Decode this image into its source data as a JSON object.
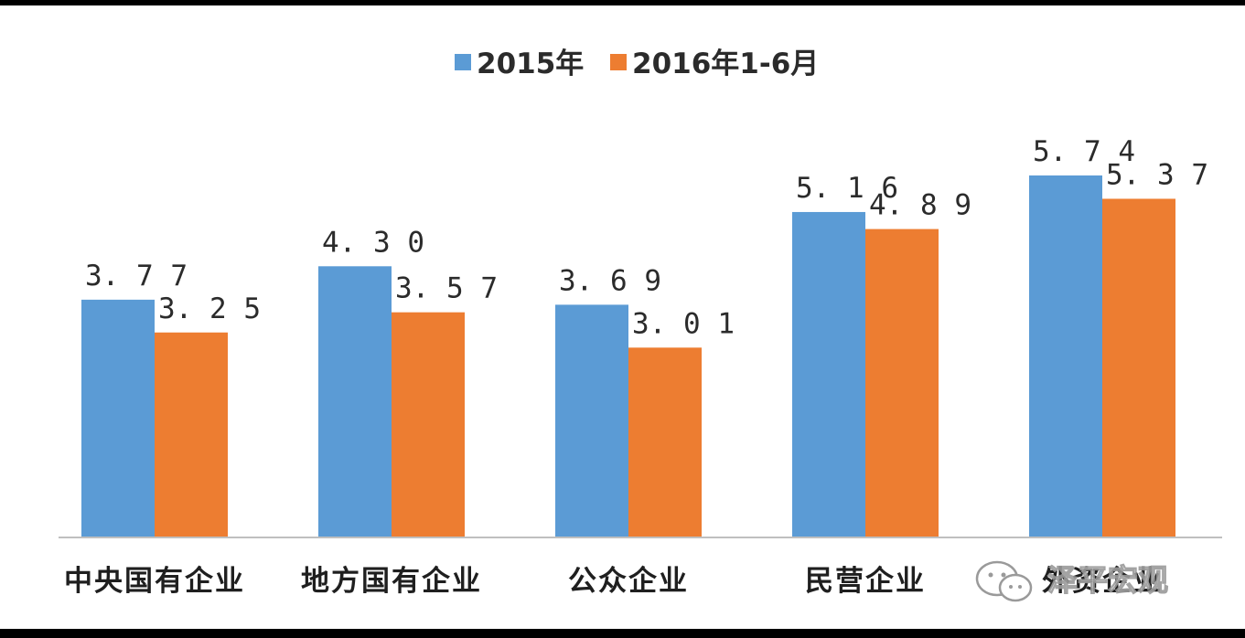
{
  "chart_data": {
    "type": "bar",
    "title": "",
    "xlabel": "",
    "ylabel": "",
    "ylim": [
      0,
      6.5
    ],
    "grid": false,
    "legend_position": "top-center",
    "categories": [
      "中央国有企业",
      "地方国有企业",
      "公众企业",
      "民营企业",
      "外资企业"
    ],
    "series": [
      {
        "name": "2015年",
        "color": "#5B9BD5",
        "values": [
          3.77,
          4.3,
          3.69,
          5.16,
          5.74
        ],
        "labels": [
          "3.77",
          "4.30",
          "3.69",
          "5.16",
          "5.74"
        ]
      },
      {
        "name": "2016年1-6月",
        "color": "#ED7D31",
        "values": [
          3.25,
          3.57,
          3.01,
          4.89,
          5.37
        ],
        "labels": [
          "3.25",
          "3.57",
          "3.01",
          "4.89",
          "5.37"
        ]
      }
    ]
  },
  "colors": {
    "frame": "#000000",
    "background": "#ffffff",
    "axis": "#bfbfbf"
  },
  "watermark": {
    "text": "泽平宏观",
    "icon": "wechat-icon"
  }
}
